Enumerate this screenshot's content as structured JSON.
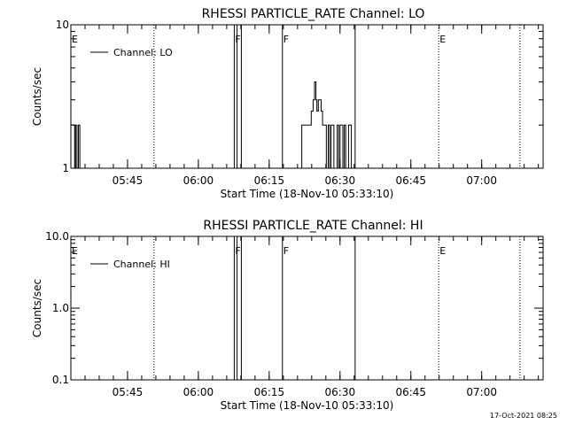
{
  "chart_data": [
    {
      "type": "line",
      "title": "RHESSI PARTICLE_RATE Channel: LO",
      "xlabel": "Start Time (18-Nov-10 05:33:10)",
      "ylabel": "Counts/sec",
      "yscale": "log",
      "ylim": [
        1,
        10
      ],
      "yticks": [
        {
          "v": 1,
          "label": "1"
        },
        {
          "v": 10,
          "label": "10"
        }
      ],
      "xlim_min": [
        0,
        100
      ],
      "xticks": [
        {
          "m": 12,
          "label": "05:45"
        },
        {
          "m": 27,
          "label": "06:00"
        },
        {
          "m": 42,
          "label": "06:15"
        },
        {
          "m": 57,
          "label": "06:30"
        },
        {
          "m": 72,
          "label": "06:45"
        },
        {
          "m": 87,
          "label": "07:00"
        }
      ],
      "legend": "Channel: LO",
      "flags": [
        {
          "m": 0,
          "label": "E"
        },
        {
          "m": 34.6,
          "label": "F"
        },
        {
          "m": 44.8,
          "label": "F"
        },
        {
          "m": 77.9,
          "label": "E"
        }
      ],
      "dotted_lines": [
        17.6,
        77.9,
        95.1
      ],
      "solid_lines": [
        34.6,
        35.2,
        36.1,
        44.8,
        60.2
      ],
      "series": [
        {
          "x": [
            0,
            0.4,
            0.8,
            1.0,
            1.3,
            1.6,
            1.9,
            2.2
          ],
          "y": [
            2,
            2,
            1,
            2,
            1,
            2,
            1,
            1
          ]
        },
        {
          "x": [
            48.6,
            48.9,
            50.6,
            50.9,
            51.3,
            51.6,
            51.9,
            52.1,
            52.4,
            52.7,
            53.0,
            53.3,
            53.8,
            54.1,
            54.5,
            54.8,
            55.1,
            55.4,
            55.7,
            56.0,
            56.4,
            56.7,
            57.0,
            57.3,
            57.6,
            57.9,
            58.2,
            58.5,
            58.8,
            59.1,
            59.4,
            59.7
          ],
          "y": [
            1,
            2,
            2,
            2.5,
            3,
            4,
            3,
            2.5,
            3,
            3,
            2.5,
            2,
            2,
            1,
            2,
            1,
            2,
            2,
            1,
            1,
            2,
            1,
            2,
            2,
            1,
            2,
            1,
            1,
            2,
            2,
            1,
            1
          ]
        }
      ]
    },
    {
      "type": "line",
      "title": "RHESSI PARTICLE_RATE Channel: HI",
      "xlabel": "Start Time (18-Nov-10 05:33:10)",
      "ylabel": "Counts/sec",
      "yscale": "log",
      "ylim": [
        0.1,
        10
      ],
      "yticks": [
        {
          "v": 0.1,
          "label": "0.1"
        },
        {
          "v": 1,
          "label": "1.0"
        },
        {
          "v": 10,
          "label": "10.0"
        }
      ],
      "xlim_min": [
        0,
        100
      ],
      "xticks": [
        {
          "m": 12,
          "label": "05:45"
        },
        {
          "m": 27,
          "label": "06:00"
        },
        {
          "m": 42,
          "label": "06:15"
        },
        {
          "m": 57,
          "label": "06:30"
        },
        {
          "m": 72,
          "label": "06:45"
        },
        {
          "m": 87,
          "label": "07:00"
        }
      ],
      "legend": "Channel: HI",
      "flags": [
        {
          "m": 0,
          "label": "E"
        },
        {
          "m": 34.6,
          "label": "F"
        },
        {
          "m": 44.8,
          "label": "F"
        },
        {
          "m": 77.9,
          "label": "E"
        }
      ],
      "dotted_lines": [
        17.6,
        77.9,
        95.1
      ],
      "solid_lines": [
        34.6,
        35.2,
        36.1,
        44.8,
        60.2
      ],
      "series": []
    }
  ],
  "footer": {
    "timestamp": "17-Oct-2021 08:25"
  }
}
